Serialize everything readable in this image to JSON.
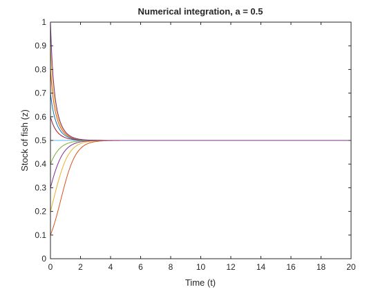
{
  "chart_data": {
    "type": "line",
    "title": "Numerical integration, a = 0.5",
    "xlabel": "Time (t)",
    "ylabel": "Stock of fish (z)",
    "xlim": [
      0,
      20
    ],
    "ylim": [
      0,
      1
    ],
    "xticks": [
      "0",
      "2",
      "4",
      "6",
      "8",
      "10",
      "12",
      "14",
      "16",
      "18",
      "20"
    ],
    "yticks": [
      "0",
      "0.1",
      "0.2",
      "0.3",
      "0.4",
      "0.5",
      "0.6",
      "0.7",
      "0.8",
      "0.9",
      "1"
    ],
    "grid": false,
    "box": true,
    "model": "logistic growth dz/dt = z(1 - z/K) with carrying capacity a = 0.5",
    "carrying_capacity": 0.5,
    "series": [
      {
        "initial": 0.0,
        "color": "#0072BD"
      },
      {
        "initial": 0.1,
        "color": "#D95319"
      },
      {
        "initial": 0.2,
        "color": "#EDB120"
      },
      {
        "initial": 0.3,
        "color": "#7E2F8E"
      },
      {
        "initial": 0.4,
        "color": "#77AC30"
      },
      {
        "initial": 0.5,
        "color": "#4DBEEE"
      },
      {
        "initial": 0.6,
        "color": "#A2142F"
      },
      {
        "initial": 0.7,
        "color": "#0072BD"
      },
      {
        "initial": 0.8,
        "color": "#D95319"
      },
      {
        "initial": 0.9,
        "color": "#EDB120"
      },
      {
        "initial": 1.0,
        "color": "#7E2F8E"
      }
    ]
  }
}
